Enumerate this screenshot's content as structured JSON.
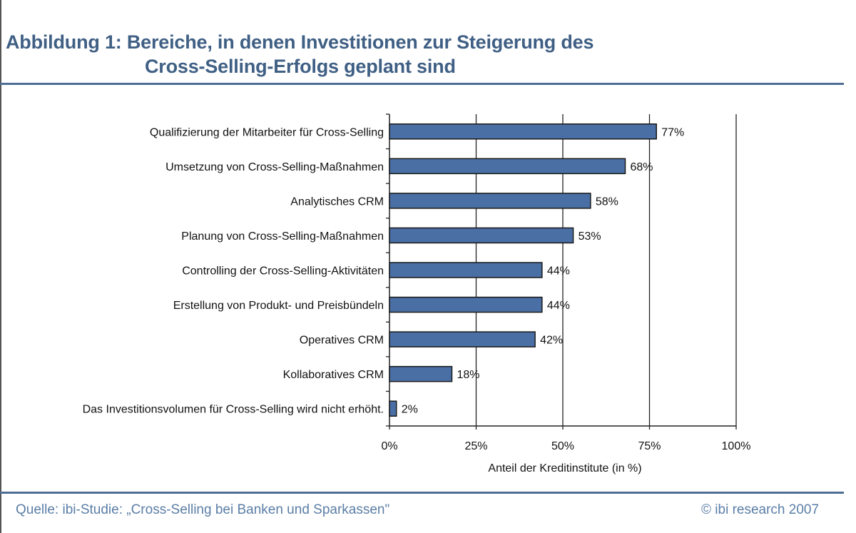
{
  "header": {
    "title_line1": "Abbildung 1: Bereiche, in denen Investitionen zur Steigerung des",
    "title_line2": "Cross-Selling-Erfolgs geplant sind"
  },
  "footer": {
    "source": "Quelle: ibi-Studie: „Cross-Selling bei Banken und Sparkassen\"",
    "copyright": "© ibi research 2007"
  },
  "colors": {
    "bar": "#4a6fa5",
    "title": "#3f5f84"
  },
  "chart_data": {
    "type": "bar",
    "orientation": "horizontal",
    "categories": [
      "Qualifizierung der Mitarbeiter für Cross-Selling",
      "Umsetzung von Cross-Selling-Maßnahmen",
      "Analytisches CRM",
      "Planung von Cross-Selling-Maßnahmen",
      "Controlling der Cross-Selling-Aktivitäten",
      "Erstellung von Produkt- und Preisbündeln",
      "Operatives CRM",
      "Kollaboratives CRM",
      "Das Investitionsvolumen für Cross-Selling wird nicht erhöht."
    ],
    "values": [
      77,
      68,
      58,
      53,
      44,
      44,
      42,
      18,
      2
    ],
    "data_labels": [
      "77%",
      "68%",
      "58%",
      "53%",
      "44%",
      "44%",
      "42%",
      "18%",
      "2%"
    ],
    "xlabel": "Anteil der Kreditinstitute (in %)",
    "xlim": [
      0,
      100
    ],
    "xticks": [
      0,
      25,
      50,
      75,
      100
    ],
    "xtick_labels": [
      "0%",
      "25%",
      "50%",
      "75%",
      "100%"
    ],
    "grid": "vertical",
    "legend": "none"
  }
}
